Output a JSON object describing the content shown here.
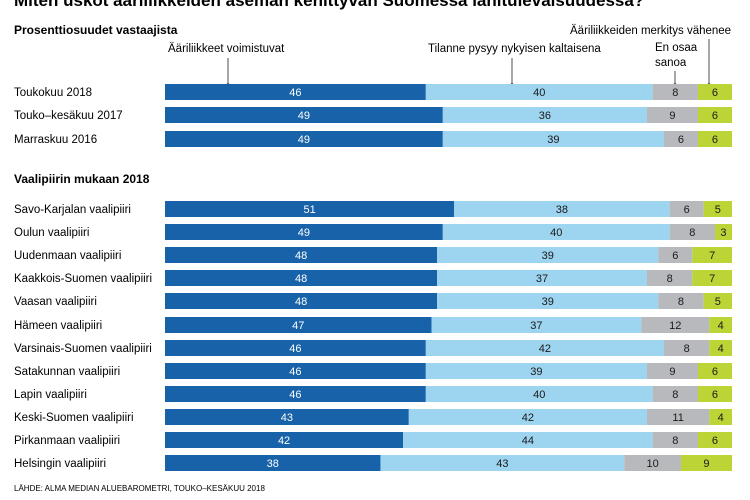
{
  "title": "Miten uskot ääriliikkeiden aseman kehittyvän Suomessa lähitulevaisuudessa?",
  "subtitle": "Prosenttiosuudet vastaajista",
  "source": "LÄHDE: ALMA MEDIAN ALUEBAROMETRI, TOUKO–KESÄKUU 2018",
  "colors": {
    "Ääriliikkeet voimistuvat": "#1762a8",
    "Tilanne pysyy nykyisen kaltaisena": "#9dd4ef",
    "En osaa sanoa": "#b7b9bc",
    "Ääriliikkeiden merkitys vähenee": "#bcd436"
  },
  "chart_data": {
    "type": "bar",
    "orientation": "horizontal",
    "stacked": true,
    "series_names": [
      "Ääriliikkeet voimistuvat",
      "Tilanne pysyy nykyisen kaltaisena",
      "En osaa sanoa",
      "Ääriliikkeiden merkitys vähenee"
    ],
    "groups": [
      {
        "label": "",
        "categories": [
          "Toukokuu 2018",
          "Touko–kesäkuu 2017",
          "Marraskuu 2016"
        ],
        "values": [
          [
            46,
            40,
            8,
            6
          ],
          [
            49,
            36,
            9,
            6
          ],
          [
            49,
            39,
            6,
            6
          ]
        ]
      },
      {
        "label": "Vaalipiirin mukaan 2018",
        "categories": [
          "Savo-Karjalan vaalipiiri",
          "Oulun vaalipiiri",
          "Uudenmaan vaalipiiri",
          "Kaakkois-Suomen vaalipiiri",
          "Vaasan vaalipiiri",
          "Hämeen vaalipiiri",
          "Varsinais-Suomen vaalipiiri",
          "Satakunnan vaalipiiri",
          "Lapin vaalipiiri",
          "Keski-Suomen vaalipiiri",
          "Pirkanmaan vaalipiiri",
          "Helsingin vaalipiiri"
        ],
        "values": [
          [
            51,
            38,
            6,
            5
          ],
          [
            49,
            40,
            8,
            3
          ],
          [
            48,
            39,
            6,
            7
          ],
          [
            48,
            37,
            8,
            7
          ],
          [
            48,
            39,
            8,
            5
          ],
          [
            47,
            37,
            12,
            4
          ],
          [
            46,
            42,
            8,
            4
          ],
          [
            46,
            39,
            9,
            6
          ],
          [
            46,
            40,
            8,
            6
          ],
          [
            43,
            42,
            11,
            4
          ],
          [
            42,
            44,
            8,
            6
          ],
          [
            38,
            43,
            10,
            9
          ]
        ]
      }
    ],
    "xlim": [
      0,
      100
    ]
  },
  "headers": {
    "a": "Ääriliikkeet voimistuvat",
    "b": "Tilanne pysyy nykyisen kaltaisena",
    "c_line1": "En osaa",
    "c_line2": "sanoa",
    "d": "Ääriliikkeiden merkitys vähenee"
  }
}
